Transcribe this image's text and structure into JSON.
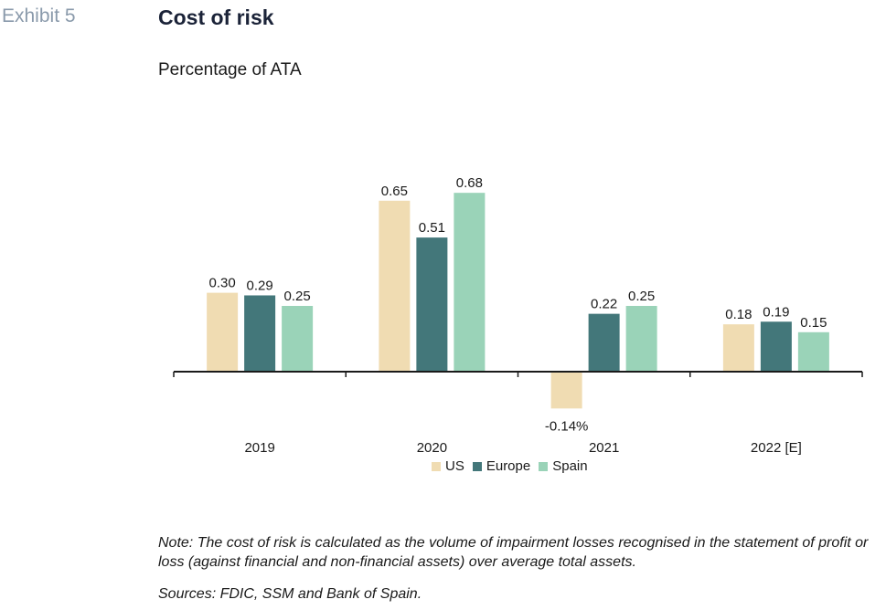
{
  "header": {
    "exhibit": "Exhibit 5",
    "title": "Cost of risk",
    "subtitle": "Percentage of ATA"
  },
  "chart_data": {
    "type": "bar",
    "categories": [
      "2019",
      "2020",
      "2021",
      "2022 [E]"
    ],
    "series": [
      {
        "name": "US",
        "color": "#f0dcb2",
        "values": [
          0.3,
          0.65,
          -0.14,
          0.18
        ],
        "labels": [
          "0.30",
          "0.65",
          "-0.14%",
          "0.18"
        ]
      },
      {
        "name": "Europe",
        "color": "#43777a",
        "values": [
          0.29,
          0.51,
          0.22,
          0.19
        ],
        "labels": [
          "0.29",
          "0.51",
          "0.22",
          "0.19"
        ]
      },
      {
        "name": "Spain",
        "color": "#9ad3b8",
        "values": [
          0.25,
          0.68,
          0.25,
          0.15
        ],
        "labels": [
          "0.25",
          "0.68",
          "0.25",
          "0.15"
        ]
      }
    ],
    "legend_position": "bottom",
    "grid": false
  },
  "footer": {
    "note": "Note: The cost of risk is calculated as the volume of impairment losses recognised in the statement of profit or loss (against financial and non-financial assets) over average total assets.",
    "sources": "Sources: FDIC, SSM and Bank of Spain."
  }
}
